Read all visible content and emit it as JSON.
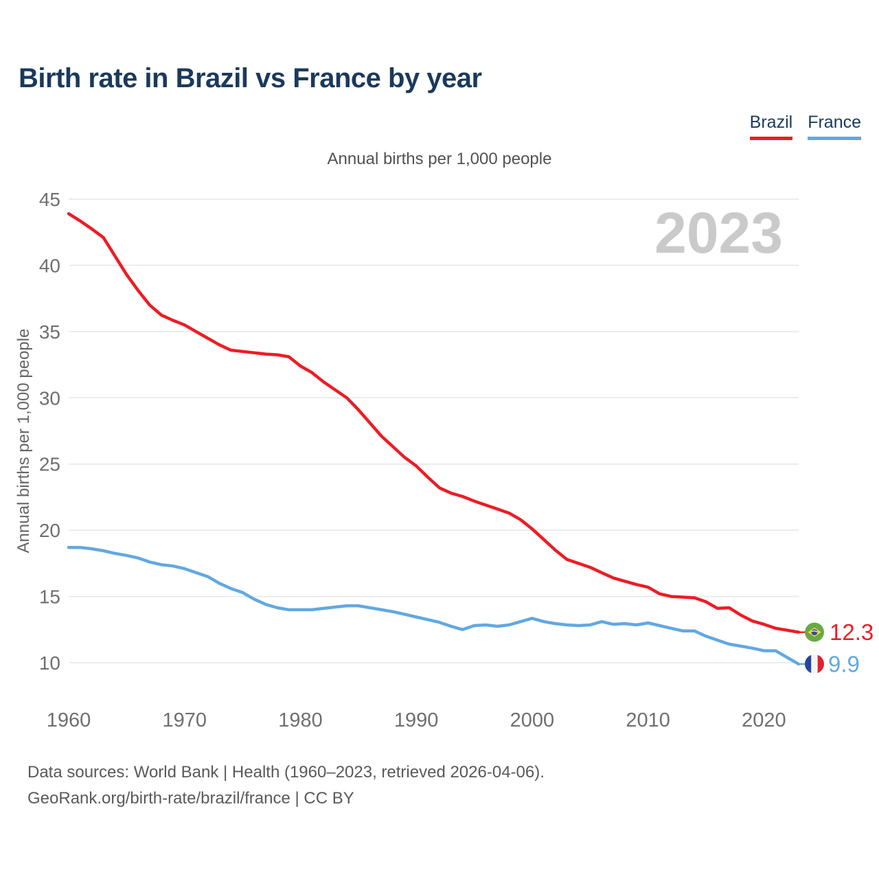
{
  "title": "Birth rate in Brazil vs France by year",
  "subtitle": "Annual births per 1,000 people",
  "watermark": "2023",
  "legend": [
    {
      "label": "Brazil",
      "color": "#ed1c24"
    },
    {
      "label": "France",
      "color": "#62a8e2"
    }
  ],
  "y_axis": {
    "label": "Annual births per 1,000 people",
    "ticks": [
      45,
      40,
      35,
      30,
      25,
      20,
      15,
      10
    ]
  },
  "x_axis": {
    "ticks": [
      1960,
      1970,
      1980,
      1990,
      2000,
      2010,
      2020
    ],
    "min": 1960,
    "max": 2023
  },
  "footer": {
    "line1": "Data sources: World Bank | Health (1960–2023, retrieved 2026-04-06).",
    "line2": "GeoRank.org/birth-rate/brazil/france | CC BY"
  },
  "colors": {
    "title": "#1a3a5c",
    "brazil": "#ed1c24",
    "france": "#62a8e2",
    "gridline": "#e6e6e6",
    "tick_text": "#6f6f6f",
    "watermark": "#cacaca",
    "footer_text": "#595959"
  },
  "chart_data": {
    "type": "line",
    "title": "Birth rate in Brazil vs France by year",
    "subtitle": "Annual births per 1,000 people",
    "xlabel": "",
    "ylabel": "Annual births per 1,000 people",
    "xlim": [
      1960,
      2023
    ],
    "ylim": [
      8.5,
      45
    ],
    "x_ticks": [
      1960,
      1970,
      1980,
      1990,
      2000,
      2010,
      2020
    ],
    "y_ticks": [
      45,
      40,
      35,
      30,
      25,
      20,
      15,
      10
    ],
    "grid": "horizontal",
    "legend_position": "top-right",
    "watermark": "2023",
    "x": [
      1960,
      1961,
      1962,
      1963,
      1964,
      1965,
      1966,
      1967,
      1968,
      1969,
      1970,
      1971,
      1972,
      1973,
      1974,
      1975,
      1976,
      1977,
      1978,
      1979,
      1980,
      1981,
      1982,
      1983,
      1984,
      1985,
      1986,
      1987,
      1988,
      1989,
      1990,
      1991,
      1992,
      1993,
      1994,
      1995,
      1996,
      1997,
      1998,
      1999,
      2000,
      2001,
      2002,
      2003,
      2004,
      2005,
      2006,
      2007,
      2008,
      2009,
      2010,
      2011,
      2012,
      2013,
      2014,
      2015,
      2016,
      2017,
      2018,
      2019,
      2020,
      2021,
      2022,
      2023
    ],
    "series": [
      {
        "name": "Brazil",
        "color": "#ed1c24",
        "end_label": "12.3",
        "values": [
          43.9,
          43.35,
          42.75,
          42.1,
          40.7,
          39.3,
          38.1,
          37.0,
          36.25,
          35.85,
          35.5,
          35.0,
          34.5,
          34.0,
          33.6,
          33.5,
          33.4,
          33.3,
          33.25,
          33.1,
          32.4,
          31.9,
          31.2,
          30.6,
          30.0,
          29.1,
          28.1,
          27.1,
          26.3,
          25.5,
          24.85,
          24.0,
          23.2,
          22.8,
          22.55,
          22.2,
          21.9,
          21.6,
          21.3,
          20.8,
          20.1,
          19.3,
          18.5,
          17.8,
          17.5,
          17.2,
          16.8,
          16.4,
          16.15,
          15.9,
          15.7,
          15.2,
          15.0,
          14.95,
          14.9,
          14.6,
          14.1,
          14.15,
          13.6,
          13.15,
          12.9,
          12.6,
          12.45,
          12.3
        ]
      },
      {
        "name": "France",
        "color": "#62a8e2",
        "end_label": "9.9",
        "values": [
          18.7,
          18.7,
          18.6,
          18.45,
          18.25,
          18.1,
          17.9,
          17.6,
          17.4,
          17.3,
          17.1,
          16.8,
          16.5,
          16.0,
          15.6,
          15.3,
          14.8,
          14.4,
          14.15,
          14.0,
          14.0,
          14.0,
          14.1,
          14.2,
          14.3,
          14.3,
          14.15,
          14.0,
          13.85,
          13.65,
          13.45,
          13.25,
          13.05,
          12.75,
          12.5,
          12.8,
          12.85,
          12.75,
          12.85,
          13.1,
          13.35,
          13.1,
          12.95,
          12.85,
          12.8,
          12.85,
          13.1,
          12.9,
          12.95,
          12.85,
          13.0,
          12.8,
          12.6,
          12.4,
          12.4,
          12.0,
          11.7,
          11.4,
          11.25,
          11.1,
          10.9,
          10.9,
          10.4,
          9.9
        ]
      }
    ]
  }
}
